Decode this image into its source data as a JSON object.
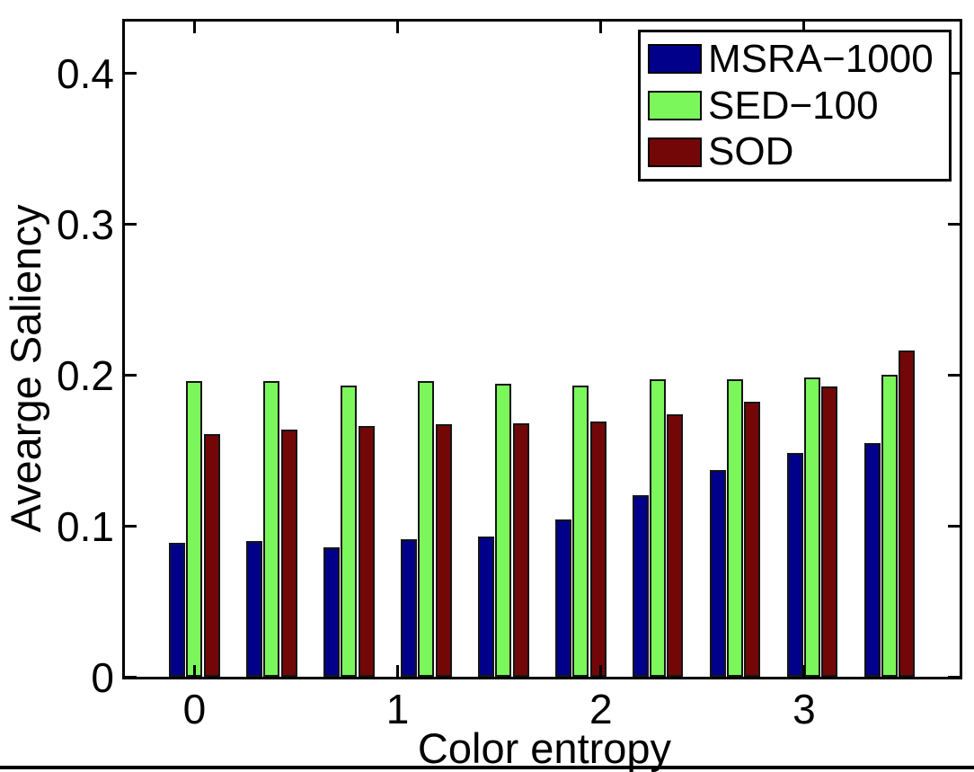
{
  "chart_data": {
    "type": "bar",
    "title": "",
    "xlabel": "Color entropy",
    "ylabel": "Avearge Saliency",
    "x": [
      0,
      0.38,
      0.76,
      1.14,
      1.52,
      1.9,
      2.28,
      2.66,
      3.04,
      3.42
    ],
    "series": [
      {
        "name": "MSRA−1000",
        "color": "#00008B",
        "values": [
          0.089,
          0.09,
          0.086,
          0.091,
          0.093,
          0.104,
          0.12,
          0.137,
          0.148,
          0.155
        ]
      },
      {
        "name": "SED−100",
        "color": "#7BF75C",
        "values": [
          0.196,
          0.196,
          0.193,
          0.196,
          0.194,
          0.193,
          0.197,
          0.197,
          0.198,
          0.2
        ]
      },
      {
        "name": "SOD",
        "color": "#730707",
        "values": [
          0.161,
          0.164,
          0.166,
          0.167,
          0.168,
          0.169,
          0.174,
          0.182,
          0.192,
          0.216
        ]
      }
    ],
    "xlim": [
      -0.342,
      3.765
    ],
    "ylim": [
      0,
      0.434
    ],
    "xticks": [
      0,
      1,
      2,
      3
    ],
    "xtick_labels": [
      "0",
      "1",
      "2",
      "3"
    ],
    "yticks": [
      0,
      0.1,
      0.2,
      0.3,
      0.4
    ],
    "ytick_labels": [
      "0",
      "0.1",
      "0.2",
      "0.3",
      "0.4"
    ],
    "grid": false,
    "legend_position": "top-right",
    "bar_edge_color": "#151515",
    "axis_color": "#000000",
    "background": "#FFFFFF"
  }
}
